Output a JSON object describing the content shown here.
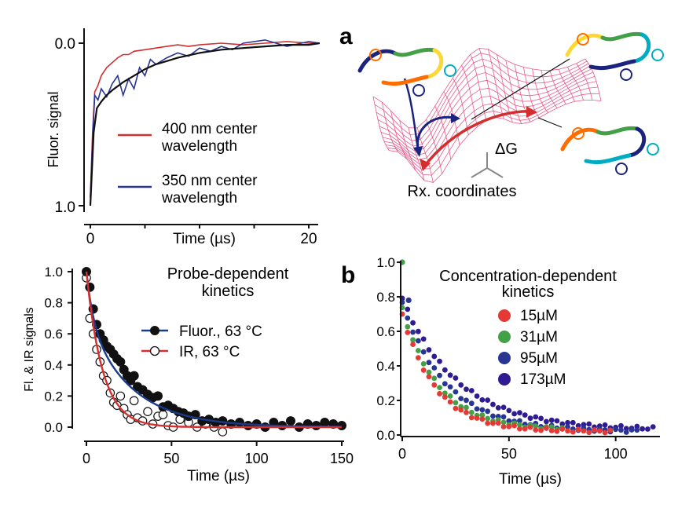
{
  "panels": {
    "a": {
      "letter": "a",
      "labels": {
        "dg": "ΔG",
        "rx": "Rx. coordinates"
      },
      "colors": {
        "surface": "#e8407a",
        "arrow_blue": "#1a237e",
        "arrow_red": "#d32f2f"
      }
    },
    "b": {
      "letter": "b"
    }
  },
  "chart_data": [
    {
      "id": "top-left",
      "type": "line",
      "xlabel": "Time (µs)",
      "ylabel": "Fluor. signal",
      "xlim": [
        -1,
        22
      ],
      "ylim": [
        1.0,
        -0.05
      ],
      "x_ticks": [
        0,
        20
      ],
      "x_tick_labels": [
        "0",
        "20"
      ],
      "y_ticks": [
        0.0,
        1.0
      ],
      "y_tick_labels": [
        "0.0",
        "1.0"
      ],
      "legend": "center",
      "series": [
        {
          "name": "400 nm center\nwavelength",
          "name_lines": [
            "400 nm center",
            "wavelength"
          ],
          "color": "#d32f2f",
          "x": [
            0,
            0.2,
            0.4,
            0.7,
            1.0,
            1.5,
            2,
            2.5,
            3,
            3.5,
            4,
            5,
            6,
            7,
            8,
            9,
            10,
            12,
            14,
            16,
            18,
            20,
            21
          ],
          "y": [
            0.95,
            0.55,
            0.3,
            0.26,
            0.2,
            0.15,
            0.12,
            0.09,
            0.07,
            0.07,
            0.05,
            0.04,
            0.03,
            0.02,
            0.01,
            0.02,
            0.01,
            0.0,
            0.01,
            0.0,
            -0.01,
            0.0,
            0.0
          ]
        },
        {
          "name": "350 nm center\nwavelength",
          "name_lines": [
            "350 nm center",
            "wavelength"
          ],
          "color": "#283593",
          "x": [
            0,
            0.2,
            0.4,
            0.7,
            1.0,
            1.5,
            2,
            2.5,
            3,
            3.5,
            4,
            4.5,
            5,
            5.5,
            6,
            7,
            8,
            9,
            10,
            11,
            12,
            13,
            14,
            16,
            18,
            20,
            21
          ],
          "y": [
            0.95,
            0.6,
            0.32,
            0.35,
            0.28,
            0.33,
            0.25,
            0.2,
            0.32,
            0.22,
            0.28,
            0.15,
            0.2,
            0.1,
            0.13,
            0.09,
            0.06,
            0.08,
            0.03,
            0.05,
            0.02,
            0.04,
            0.0,
            -0.02,
            0.02,
            -0.01,
            0.0
          ]
        },
        {
          "name": "",
          "color": "#111111",
          "x": [
            0,
            0.3,
            0.6,
            1,
            1.5,
            2,
            3,
            4,
            5,
            6,
            7,
            8,
            10,
            12,
            14,
            16,
            18,
            20,
            21
          ],
          "y": [
            1.0,
            0.55,
            0.4,
            0.36,
            0.32,
            0.29,
            0.24,
            0.2,
            0.16,
            0.13,
            0.11,
            0.09,
            0.06,
            0.04,
            0.03,
            0.02,
            0.01,
            0.01,
            0.0
          ]
        }
      ]
    },
    {
      "id": "bottom-left",
      "type": "scatter",
      "title": "Probe-dependent\nkinetics",
      "title_lines": [
        "Probe-dependent",
        "kinetics"
      ],
      "xlabel": "Time (µs)",
      "ylabel": "Fl. & IR signals",
      "xlim": [
        -3,
        152
      ],
      "ylim": [
        -0.05,
        1.05
      ],
      "x_ticks": [
        0,
        50,
        100,
        150
      ],
      "x_tick_labels": [
        "0",
        "50",
        "100",
        "150"
      ],
      "y_ticks": [
        0.0,
        0.2,
        0.4,
        0.6,
        0.8,
        1.0
      ],
      "y_tick_labels": [
        "0.0",
        "0.2",
        "0.4",
        "0.6",
        "0.8",
        "1.0"
      ],
      "legend": "top-right",
      "series": [
        {
          "name": "Fluor., 63 °C",
          "marker": "filled",
          "color": "#111111",
          "fit_color": "#1a3a8a",
          "fit": {
            "a0": 0.3,
            "tau0": 4,
            "a1": 0.7,
            "tau1": 26
          },
          "x": [
            0,
            2,
            4,
            6,
            8,
            10,
            12,
            14,
            16,
            18,
            20,
            22,
            24,
            26,
            28,
            30,
            33,
            36,
            39,
            42,
            45,
            48,
            51,
            54,
            57,
            60,
            64,
            68,
            72,
            76,
            80,
            85,
            90,
            95,
            100,
            105,
            110,
            115,
            120,
            125,
            130,
            135,
            140,
            145,
            150
          ],
          "y": [
            1.0,
            0.9,
            0.76,
            0.66,
            0.6,
            0.56,
            0.52,
            0.5,
            0.47,
            0.44,
            0.42,
            0.37,
            0.33,
            0.3,
            0.33,
            0.26,
            0.24,
            0.21,
            0.19,
            0.2,
            0.13,
            0.14,
            0.12,
            0.1,
            0.09,
            0.07,
            0.08,
            0.04,
            0.05,
            0.03,
            0.04,
            0.02,
            0.03,
            0.01,
            0.02,
            0.0,
            0.03,
            0.01,
            0.04,
            0.0,
            0.02,
            0.01,
            0.03,
            0.02,
            0.01
          ]
        },
        {
          "name": "IR, 63 °C",
          "marker": "open",
          "color": "#111111",
          "fit_color": "#d32f2f",
          "fit": {
            "a0": 1.0,
            "tau0": 9.5,
            "a1": 0.0,
            "tau1": 1
          },
          "x": [
            0,
            2,
            4,
            6,
            8,
            10,
            12,
            14,
            16,
            18,
            20,
            22,
            24,
            26,
            28,
            30,
            33,
            36,
            39,
            42,
            45,
            48,
            51,
            55,
            60,
            65,
            70,
            75,
            80
          ],
          "y": [
            0.96,
            0.7,
            0.6,
            0.5,
            0.42,
            0.33,
            0.3,
            0.22,
            0.16,
            0.14,
            0.2,
            0.12,
            0.08,
            0.05,
            0.17,
            0.06,
            0.04,
            0.1,
            0.02,
            0.07,
            0.08,
            0.01,
            0.0,
            0.05,
            0.03,
            0.0,
            0.02,
            0.0,
            -0.03
          ]
        }
      ]
    },
    {
      "id": "bottom-right",
      "type": "scatter",
      "title": "Concentration-dependent\nkinetics",
      "title_lines": [
        "Concentration-dependent",
        "kinetics"
      ],
      "xlabel": "Time (µs)",
      "ylabel": "",
      "xlim": [
        0,
        120
      ],
      "ylim": [
        -0.02,
        1.02
      ],
      "x_ticks": [
        0,
        50,
        100
      ],
      "x_tick_labels": [
        "0",
        "50",
        "100"
      ],
      "y_ticks": [
        0.0,
        0.2,
        0.4,
        0.6,
        0.8,
        1.0
      ],
      "y_tick_labels": [
        "0.0",
        "0.2",
        "0.4",
        "0.6",
        "0.8",
        "1.0"
      ],
      "legend": "top-center",
      "series": [
        {
          "name": "15µM",
          "color": "#e53935",
          "params": {
            "a": 0.68,
            "tau": 16,
            "c": 0.02,
            "xmax": 98
          }
        },
        {
          "name": "31µM",
          "color": "#43a047",
          "params": {
            "a": 0.7,
            "tau": 17,
            "c": 0.03,
            "xmax": 75
          }
        },
        {
          "name": "95µM",
          "color": "#283593",
          "params": {
            "a": 0.74,
            "tau": 21,
            "c": 0.02,
            "xmax": 110
          }
        },
        {
          "name": "173µM",
          "color": "#311b92",
          "params": {
            "a": 0.76,
            "tau": 26,
            "c": 0.03,
            "xmax": 118
          }
        }
      ],
      "extra_points": [
        {
          "x": 0,
          "y": 1.0,
          "color": "#43a047"
        },
        {
          "x": 3,
          "y": 0.78,
          "color": "#283593"
        }
      ]
    }
  ]
}
